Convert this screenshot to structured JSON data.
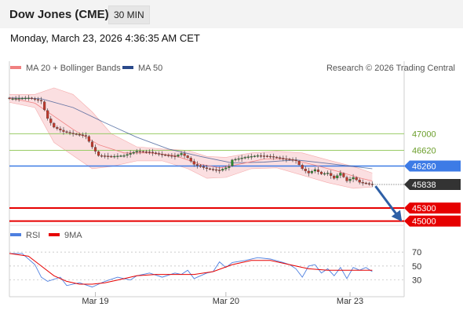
{
  "header": {
    "title": "Dow Jones (CME)",
    "interval": "30 MIN",
    "datetime": "Monday, March 23, 2026 4:36:35 AM CET"
  },
  "colors": {
    "bollinger": "#f08080",
    "ma50": "#2b4a8b",
    "green_level": "#99cc66",
    "blue_level": "#3d7be6",
    "red_level": "#e60000",
    "rsi": "#4d7fe0",
    "rsi_ma": "#e60000",
    "arrow": "#2e5fa6"
  },
  "chart_data": [
    {
      "type": "candlestick",
      "legend": [
        {
          "name": "MA 20 + Bollinger Bands",
          "color": "#f08080"
        },
        {
          "name": "MA 50",
          "color": "#2b4a8b"
        }
      ],
      "credit": "Research © 2026 Trading Central",
      "x_tick_labels": [
        "Mar 19",
        "Mar 20",
        "Mar 23"
      ],
      "ylim": [
        44850,
        48300
      ],
      "levels": [
        {
          "value": 47000,
          "label": "47000",
          "kind": "resistance-green"
        },
        {
          "value": 46620,
          "label": "46620",
          "kind": "resistance-green"
        },
        {
          "value": 46260,
          "label": "46260",
          "kind": "pivot-blue"
        },
        {
          "value": 45300,
          "label": "45300",
          "kind": "support-red"
        },
        {
          "value": 45000,
          "label": "45000",
          "kind": "support-red"
        }
      ],
      "last_price": {
        "value": 45838,
        "label": "45838"
      },
      "price_path": [
        [
          0,
          47800
        ],
        [
          6,
          47820
        ],
        [
          10,
          47750
        ],
        [
          12,
          47350
        ],
        [
          14,
          47150
        ],
        [
          17,
          47050
        ],
        [
          20,
          47000
        ],
        [
          24,
          46950
        ],
        [
          26,
          46700
        ],
        [
          28,
          46500
        ],
        [
          32,
          46480
        ],
        [
          36,
          46500
        ],
        [
          40,
          46600
        ],
        [
          44,
          46580
        ],
        [
          48,
          46520
        ],
        [
          52,
          46480
        ],
        [
          54,
          46550
        ],
        [
          56,
          46450
        ],
        [
          58,
          46300
        ],
        [
          62,
          46200
        ],
        [
          66,
          46160
        ],
        [
          69,
          46250
        ],
        [
          70,
          46400
        ],
        [
          74,
          46460
        ],
        [
          78,
          46500
        ],
        [
          82,
          46480
        ],
        [
          86,
          46430
        ],
        [
          89,
          46400
        ],
        [
          90,
          46380
        ],
        [
          92,
          46200
        ],
        [
          94,
          46100
        ],
        [
          96,
          46180
        ],
        [
          98,
          46080
        ],
        [
          100,
          46100
        ],
        [
          102,
          45980
        ],
        [
          104,
          46100
        ],
        [
          106,
          45920
        ],
        [
          108,
          46000
        ],
        [
          110,
          45890
        ],
        [
          112,
          45860
        ],
        [
          114,
          45838
        ]
      ],
      "ma20": [
        [
          0,
          47820
        ],
        [
          8,
          47700
        ],
        [
          14,
          47400
        ],
        [
          20,
          47100
        ],
        [
          28,
          46750
        ],
        [
          36,
          46560
        ],
        [
          44,
          46560
        ],
        [
          52,
          46500
        ],
        [
          60,
          46300
        ],
        [
          66,
          46220
        ],
        [
          72,
          46300
        ],
        [
          80,
          46420
        ],
        [
          88,
          46420
        ],
        [
          96,
          46280
        ],
        [
          104,
          46120
        ],
        [
          110,
          45990
        ],
        [
          114,
          45920
        ]
      ],
      "bollinger_upper": [
        [
          0,
          47900
        ],
        [
          8,
          47900
        ],
        [
          14,
          48050
        ],
        [
          20,
          47900
        ],
        [
          26,
          47500
        ],
        [
          32,
          47000
        ],
        [
          40,
          46700
        ],
        [
          48,
          46650
        ],
        [
          56,
          46620
        ],
        [
          62,
          46480
        ],
        [
          68,
          46460
        ],
        [
          76,
          46560
        ],
        [
          84,
          46600
        ],
        [
          92,
          46560
        ],
        [
          100,
          46400
        ],
        [
          108,
          46250
        ],
        [
          114,
          46100
        ]
      ],
      "bollinger_lower": [
        [
          0,
          47720
        ],
        [
          8,
          47600
        ],
        [
          14,
          46800
        ],
        [
          20,
          46500
        ],
        [
          26,
          46200
        ],
        [
          32,
          46250
        ],
        [
          40,
          46380
        ],
        [
          48,
          46380
        ],
        [
          56,
          46200
        ],
        [
          62,
          45980
        ],
        [
          68,
          46000
        ],
        [
          76,
          46200
        ],
        [
          84,
          46220
        ],
        [
          92,
          46050
        ],
        [
          100,
          45880
        ],
        [
          108,
          45750
        ],
        [
          114,
          45780
        ]
      ],
      "ma50": [
        [
          0,
          47820
        ],
        [
          10,
          47800
        ],
        [
          20,
          47600
        ],
        [
          30,
          47250
        ],
        [
          40,
          46920
        ],
        [
          50,
          46650
        ],
        [
          60,
          46480
        ],
        [
          70,
          46330
        ],
        [
          80,
          46350
        ],
        [
          90,
          46400
        ],
        [
          100,
          46320
        ],
        [
          108,
          46250
        ],
        [
          114,
          46200
        ]
      ],
      "projection": {
        "from": [
          115,
          45800
        ],
        "to": [
          123,
          45020
        ]
      }
    },
    {
      "type": "line",
      "legend": [
        {
          "name": "RSI",
          "color": "#4d7fe0"
        },
        {
          "name": "9MA",
          "color": "#e60000"
        }
      ],
      "ylim": [
        15,
        78
      ],
      "y_ticks": [
        70,
        50,
        30
      ],
      "y_tick_labels": [
        "70",
        "50",
        "30"
      ],
      "rsi": [
        [
          0,
          68
        ],
        [
          4,
          68
        ],
        [
          8,
          52
        ],
        [
          10,
          34
        ],
        [
          12,
          28
        ],
        [
          16,
          34
        ],
        [
          18,
          22
        ],
        [
          22,
          26
        ],
        [
          26,
          20
        ],
        [
          30,
          28
        ],
        [
          34,
          34
        ],
        [
          38,
          30
        ],
        [
          40,
          36
        ],
        [
          44,
          40
        ],
        [
          48,
          34
        ],
        [
          52,
          40
        ],
        [
          54,
          38
        ],
        [
          56,
          44
        ],
        [
          58,
          32
        ],
        [
          62,
          40
        ],
        [
          64,
          42
        ],
        [
          66,
          56
        ],
        [
          68,
          48
        ],
        [
          70,
          55
        ],
        [
          74,
          58
        ],
        [
          78,
          62
        ],
        [
          82,
          60
        ],
        [
          86,
          55
        ],
        [
          88,
          52
        ],
        [
          90,
          46
        ],
        [
          92,
          34
        ],
        [
          94,
          50
        ],
        [
          96,
          52
        ],
        [
          98,
          40
        ],
        [
          100,
          46
        ],
        [
          102,
          36
        ],
        [
          104,
          48
        ],
        [
          106,
          32
        ],
        [
          108,
          48
        ],
        [
          110,
          44
        ],
        [
          112,
          48
        ],
        [
          114,
          42
        ]
      ],
      "rsi_ma": [
        [
          0,
          68
        ],
        [
          6,
          64
        ],
        [
          10,
          50
        ],
        [
          14,
          36
        ],
        [
          18,
          28
        ],
        [
          22,
          24
        ],
        [
          26,
          24
        ],
        [
          30,
          26
        ],
        [
          34,
          30
        ],
        [
          40,
          36
        ],
        [
          46,
          38
        ],
        [
          52,
          38
        ],
        [
          58,
          38
        ],
        [
          64,
          42
        ],
        [
          70,
          52
        ],
        [
          76,
          58
        ],
        [
          82,
          58
        ],
        [
          88,
          52
        ],
        [
          94,
          46
        ],
        [
          100,
          44
        ],
        [
          106,
          44
        ],
        [
          112,
          44
        ],
        [
          114,
          44
        ]
      ]
    }
  ]
}
